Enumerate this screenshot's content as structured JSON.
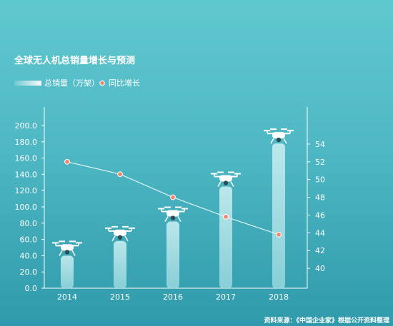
{
  "chart_data": {
    "type": "bar",
    "title": "全球无人机总销量增长与预测",
    "categories": [
      "2014",
      "2015",
      "2016",
      "2017",
      "2018"
    ],
    "series": [
      {
        "name": "总销量（万架）",
        "type": "bar",
        "axis": "left",
        "values": [
          40,
          58,
          82,
          125,
          178
        ]
      },
      {
        "name": "同比增长",
        "type": "line",
        "axis": "right",
        "values": [
          52.0,
          50.6,
          48.0,
          45.8,
          43.8
        ]
      }
    ],
    "ylim_left": [
      0,
      200
    ],
    "yticks_left": [
      "0.0",
      "20.0",
      "40.0",
      "60.0",
      "80.0",
      "100.0",
      "120.0",
      "140.0",
      "160.0",
      "180.0",
      "200.0"
    ],
    "ylim_right": [
      38,
      56
    ],
    "yticks_right": [
      "40",
      "42",
      "44",
      "46",
      "48",
      "50",
      "52",
      "54"
    ],
    "source": "资料来源：《中国企业家》根据公开资料整理",
    "colors": {
      "bar": "#a6dfe4",
      "line": "#dff4f6",
      "marker": "#ef8873",
      "text": "#ffffff"
    }
  }
}
